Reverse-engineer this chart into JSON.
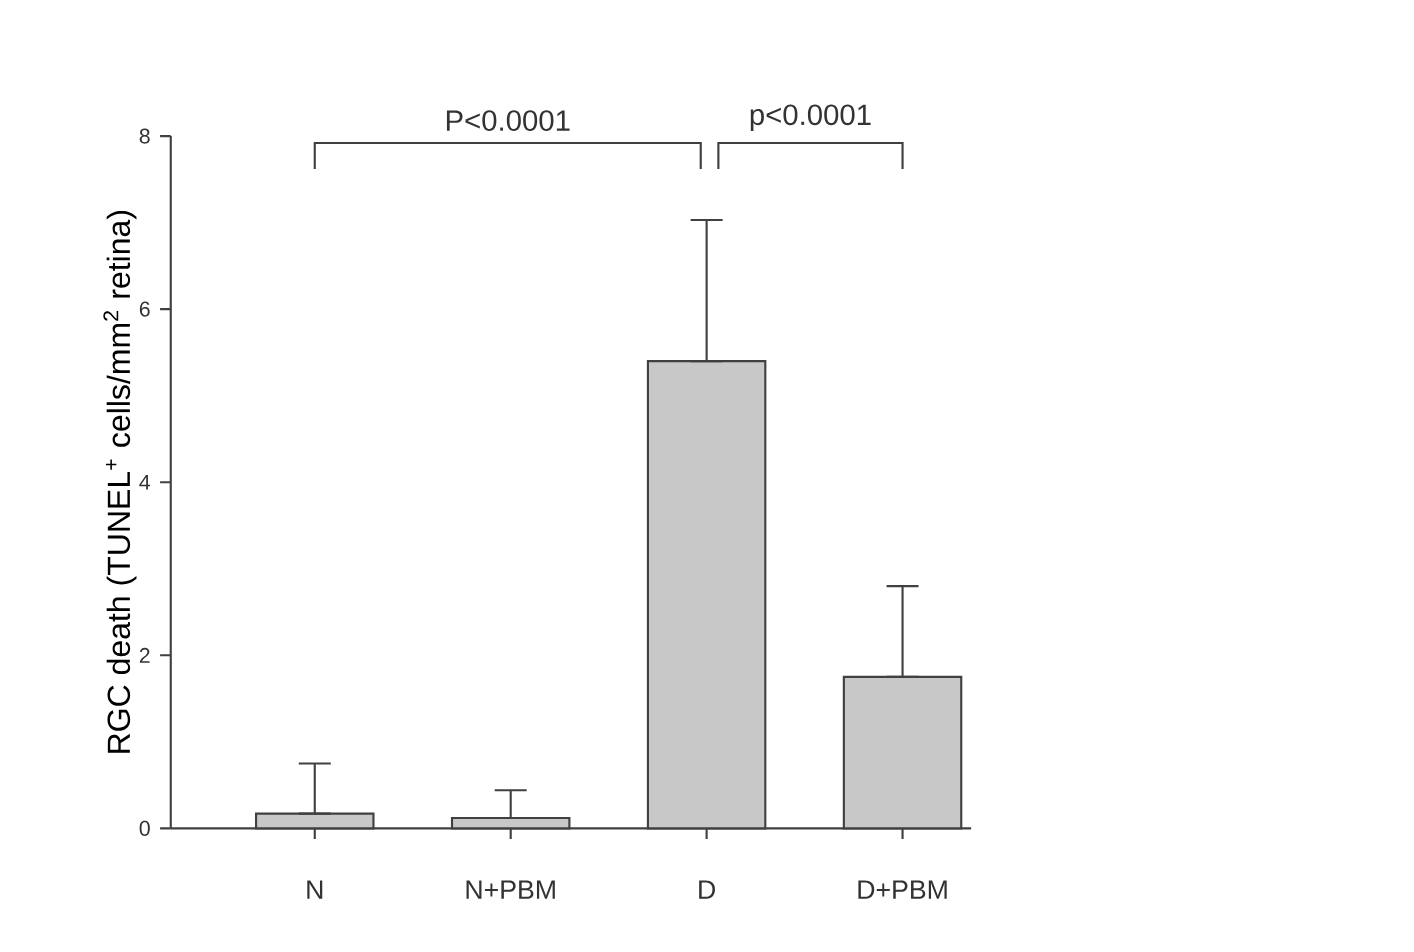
{
  "chart_data": {
    "type": "bar",
    "categories": [
      "N",
      "N+PBM",
      "D",
      "D+PBM"
    ],
    "values": [
      0.17,
      0.12,
      5.4,
      1.75
    ],
    "errors": [
      [
        0.17,
        0.75
      ],
      [
        0.12,
        0.44
      ],
      [
        5.4,
        7.03
      ],
      [
        1.75,
        2.8
      ]
    ],
    "color": "#c8c8c8",
    "ylabel": "RGC death (TUNEL$^{+}$ cells/mm$^{2}$ retina)",
    "ylim": [
      0,
      8
    ],
    "yticks": [
      0,
      2,
      4,
      6,
      8
    ],
    "annotations": [
      "P<0.0001",
      "p<0.0001"
    ]
  }
}
